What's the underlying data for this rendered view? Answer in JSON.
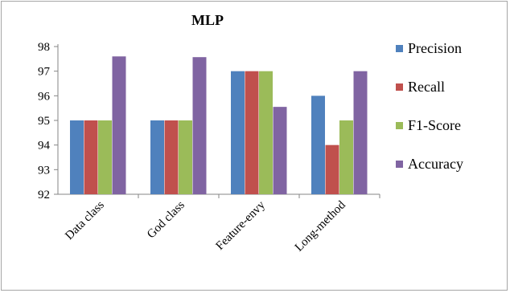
{
  "chart_data": {
    "type": "bar",
    "title": "MLP",
    "xlabel": "",
    "ylabel": "",
    "categories": [
      "Data class",
      "God class",
      "Feature-envy",
      "Long-method"
    ],
    "series": [
      {
        "name": "Precision",
        "color": "#4f81bd",
        "values": [
          95,
          95,
          97,
          96
        ]
      },
      {
        "name": "Recall",
        "color": "#c0504d",
        "values": [
          95,
          95,
          97,
          94
        ]
      },
      {
        "name": "F1-Score",
        "color": "#9bbb59",
        "values": [
          95,
          95,
          97,
          95
        ]
      },
      {
        "name": "Accuracy",
        "color": "#8064a2",
        "values": [
          97.6,
          97.57,
          95.55,
          97
        ]
      }
    ],
    "ylim": [
      92,
      98
    ],
    "yticks": [
      "92",
      "93",
      "94",
      "95",
      "96",
      "97",
      "98"
    ],
    "grid": false,
    "legend_position": "right"
  }
}
